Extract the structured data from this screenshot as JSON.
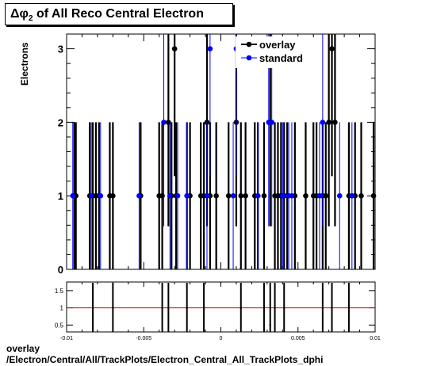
{
  "title": {
    "symbol": "Δφ",
    "subscript": "2",
    "text": "of All Reco Central  Electron"
  },
  "footer": {
    "line1": "overlay",
    "line2": "/Electron/Central/All/TrackPlots/Electron_Central_All_TrackPlots_dphi"
  },
  "colors": {
    "overlay": "#000000",
    "standard": "#0000ff",
    "ratio_line": "#cc0000"
  },
  "chart_data": [
    {
      "type": "scatter",
      "ylabel": "Electrons",
      "xlim": [
        -0.01,
        0.01
      ],
      "ylim": [
        0,
        3.2
      ],
      "yticks": [
        0,
        1,
        2,
        3
      ],
      "grid": false,
      "legend_position": "top-right",
      "legend": [
        "overlay",
        "standard"
      ],
      "series": [
        {
          "name": "overlay",
          "x": [
            -0.0095,
            -0.0094,
            -0.0085,
            -0.0083,
            -0.0081,
            -0.0079,
            -0.0072,
            -0.007,
            -0.0052,
            -0.004,
            -0.0038,
            -0.0034,
            -0.0032,
            -0.003,
            -0.0029,
            -0.0022,
            -0.002,
            -0.0013,
            -0.0011,
            -0.0009,
            -0.0007,
            -0.0003,
            0.0005,
            0.001,
            0.0013,
            0.0016,
            0.0022,
            0.0024,
            0.0028,
            0.0032,
            0.0035,
            0.0037,
            0.0039,
            0.0041,
            0.0043,
            0.0048,
            0.0055,
            0.006,
            0.0062,
            0.0066,
            0.0068,
            0.007,
            0.0072,
            0.0074,
            0.0083,
            0.0087,
            0.0091,
            0.0099
          ],
          "y": [
            1,
            1,
            1,
            1,
            1,
            1,
            1,
            1,
            1,
            1,
            1,
            2,
            1,
            3,
            1,
            1,
            1,
            1,
            1,
            2,
            1,
            1,
            1,
            2,
            1,
            1,
            1,
            1,
            1,
            2,
            1,
            1,
            1,
            1,
            1,
            1,
            1,
            1,
            1,
            1,
            1,
            2,
            3,
            2,
            1,
            1,
            1,
            1
          ]
        },
        {
          "name": "standard",
          "x": [
            -0.0096,
            -0.0084,
            -0.0078,
            -0.0053,
            -0.0037,
            -0.0033,
            -0.0028,
            -0.0022,
            -0.0009,
            -0.0007,
            0.0008,
            0.001,
            0.0024,
            0.0031,
            0.0033,
            0.004,
            0.0044,
            0.0046,
            0.0064,
            0.0066,
            0.0077,
            0.0085
          ],
          "y": [
            1,
            1,
            1,
            1,
            2,
            1,
            1,
            1,
            1,
            3,
            1,
            3,
            1,
            2,
            2,
            1,
            1,
            1,
            1,
            2,
            1,
            1
          ]
        }
      ]
    },
    {
      "type": "scatter",
      "xlim": [
        -0.01,
        0.01
      ],
      "ylim": [
        0.3,
        1.75
      ],
      "xticks": [
        -0.01,
        -0.005,
        0,
        0.005,
        0.01
      ],
      "xtick_labels": [
        "-0.01",
        "-0.005",
        "0",
        "0.005",
        "0.01"
      ],
      "yticks": [
        0.5,
        1,
        1.5
      ],
      "ytick_labels": [
        "0.5",
        "1",
        "1.5"
      ],
      "reference_line": 1,
      "series": [
        {
          "name": "ratio",
          "x": [
            -0.0083,
            -0.007,
            -0.0038,
            -0.0034,
            -0.0022,
            -0.0011,
            0.0013,
            0.0028,
            0.0032,
            0.0035,
            0.0041,
            0.0066,
            0.0072,
            0.0083
          ],
          "y": [
            1,
            1,
            1,
            1,
            1,
            1,
            1,
            1,
            0.5,
            1,
            1,
            1,
            1,
            1
          ]
        }
      ]
    }
  ]
}
